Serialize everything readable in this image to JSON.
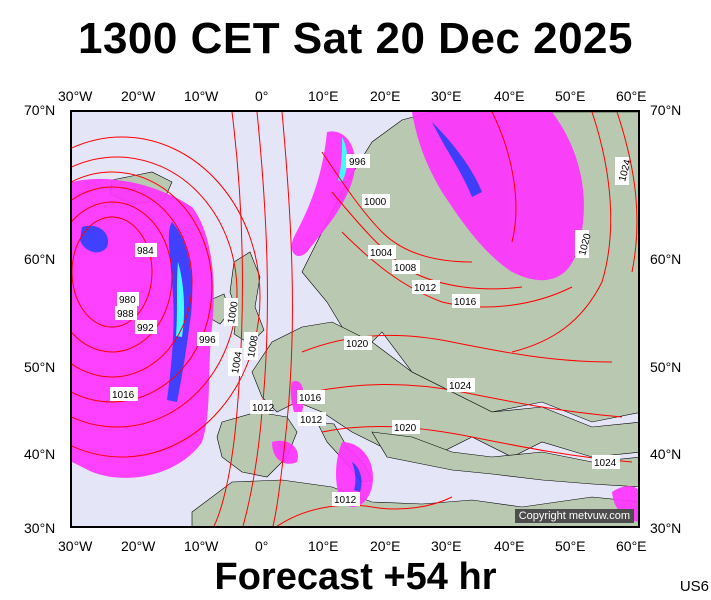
{
  "title": "1300 CET Sat 20 Dec 2025",
  "footer": "Forecast +54 hr",
  "corner_code": "US6",
  "copyright": "Copyright metvuw.com",
  "axes": {
    "top_lon": [
      "30°W",
      "20°W",
      "10°W",
      "0°",
      "10°E",
      "20°E",
      "30°E",
      "40°E",
      "50°E",
      "60°E"
    ],
    "bottom_lon": [
      "30°W",
      "20°W",
      "10°W",
      "0°",
      "10°E",
      "20°E",
      "30°E",
      "40°E",
      "50°E",
      "60°E"
    ],
    "left_lat": [
      "70°N",
      "60°N",
      "50°N",
      "40°N",
      "30°N"
    ],
    "right_lat": [
      "70°N",
      "60°N",
      "50°N",
      "40°N",
      "30°N"
    ]
  },
  "isobar_labels": [
    "996",
    "1000",
    "1004",
    "1008",
    "1012",
    "1016",
    "1024",
    "1020",
    "984",
    "980",
    "988",
    "992",
    "996",
    "1000",
    "1004",
    "1008",
    "1012",
    "1020",
    "1016",
    "1024",
    "1016",
    "1012",
    "1020",
    "1024",
    "1012"
  ],
  "colors": {
    "isobar": "#ff0000",
    "precip_main": "#ff33ff",
    "precip_heavy": "#3333ff",
    "precip_extreme": "#33ffff",
    "land": "#b8c8b0",
    "sea": "#e5e5f8"
  }
}
